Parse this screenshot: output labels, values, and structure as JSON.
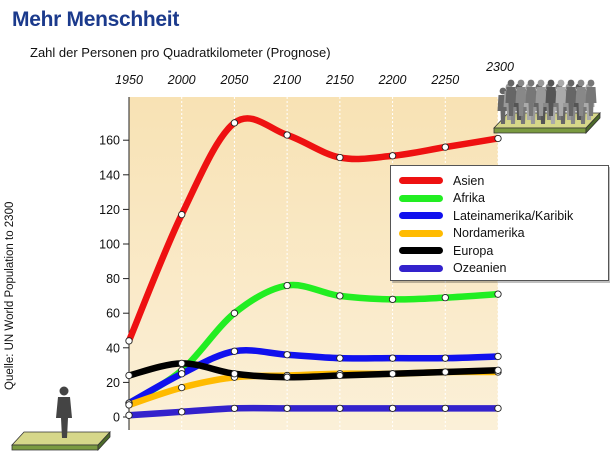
{
  "chart_data": {
    "type": "line",
    "title": "Mehr Menschheit",
    "subtitle": "Zahl der Personen pro Quadratkilometer (Prognose)",
    "source": "Quelle: UN World Population to 2300",
    "x": [
      1950,
      2000,
      2050,
      2100,
      2150,
      2200,
      2250,
      2300
    ],
    "x_tick_labels": [
      "1950",
      "2000",
      "2050",
      "2100",
      "2150",
      "2200",
      "2250",
      "2300"
    ],
    "y_ticks": [
      0,
      20,
      40,
      60,
      80,
      100,
      120,
      140,
      160
    ],
    "ylim": [
      0,
      163
    ],
    "grid": false,
    "legend_position": "right",
    "series": [
      {
        "name": "Asien",
        "color": "#ee1111",
        "values": [
          44,
          117,
          170,
          163,
          150,
          151,
          156,
          161
        ]
      },
      {
        "name": "Afrika",
        "color": "#22ee22",
        "values": [
          8,
          27,
          60,
          76,
          70,
          68,
          69,
          71
        ]
      },
      {
        "name": "Lateinamerika/Karibik",
        "color": "#1111ee",
        "values": [
          8,
          25,
          38,
          36,
          34,
          34,
          34,
          35
        ]
      },
      {
        "name": "Nordamerika",
        "color": "#ffbb00",
        "values": [
          7,
          17,
          23,
          24,
          25,
          25,
          26,
          26
        ]
      },
      {
        "name": "Europa",
        "color": "#000000",
        "values": [
          24,
          31,
          25,
          23,
          24,
          25,
          26,
          27
        ]
      },
      {
        "name": "Ozeanien",
        "color": "#3322cc",
        "values": [
          1,
          3,
          5,
          5,
          5,
          5,
          5,
          5
        ]
      }
    ]
  },
  "decor": {
    "single_person": "person-icon",
    "crowd": "crowd-icon"
  }
}
